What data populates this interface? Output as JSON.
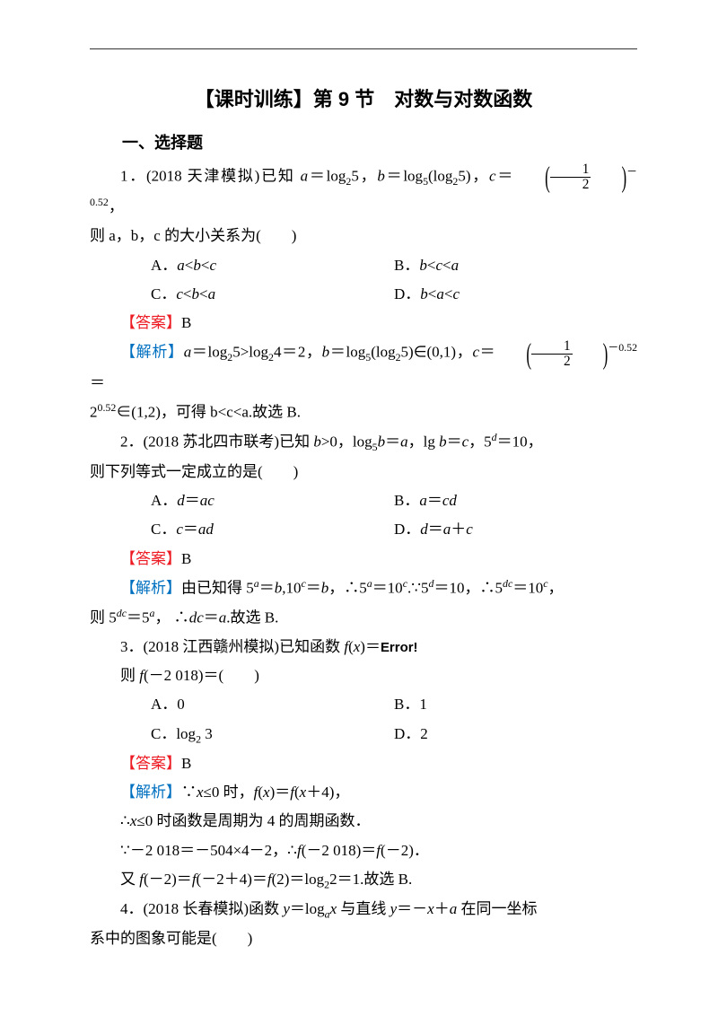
{
  "title": "【课时训练】第 9 节　对数与对数函数",
  "section_heading": "一、选择题",
  "q1": {
    "stem_a": "1．(2018 天津模拟)已知 ",
    "stem_mid": "，",
    "stem_c": "，",
    "stem_end": "，",
    "line2": "则 a，b，c 的大小关系为(　　)",
    "A": "A．a<b<c",
    "B": "B．b<c<a",
    "C": "C．c<b<a",
    "D": "D．b<a<c",
    "ans_label": "【答案】",
    "ans": "B",
    "exp_label": "【解析】",
    "exp_a": "a＝log",
    "exp_b": "5>log",
    "exp_c": "4＝2，b＝log",
    "exp_d": "(log",
    "exp_e": "5)∈(0,1)，c＝",
    "exp_f": "＝",
    "exp2": "∈(1,2)，可得 b<c<a.故选 B."
  },
  "q2": {
    "stem": "2．(2018 苏北四市联考)已知 b>0，log₅b＝a，lg b＝c，5ᵈ＝10，",
    "line2": "则下列等式一定成立的是(　　)",
    "A": "A．d＝ac",
    "B": "B．a＝cd",
    "C": "C．c＝ad",
    "D": "D．d＝a＋c",
    "ans_label": "【答案】",
    "ans": "B",
    "exp_label": "【解析】",
    "exp1": "由已知得 5ᵃ＝b,10ᶜ＝b，∴5ᵃ＝10ᶜ.∵5ᵈ＝10，∴5ᵈᶜ＝10ᶜ，",
    "exp2": "则 5ᵈᶜ＝5ᵃ， ∴dc＝a.故选 B."
  },
  "q3": {
    "stem": "3．(2018 江西赣州模拟)已知函数 f(x)＝",
    "err": "Error!",
    "line2": "则 f(－2 018)＝(　　)",
    "A": "A．0",
    "B": "B．1",
    "C": "C．log₂ 3",
    "D": "D．2",
    "ans_label": "【答案】",
    "ans": "B",
    "exp_label": "【解析】",
    "exp1": "∵x≤0 时，f(x)＝f(x＋4)，",
    "exp2": "∴x≤0 时函数是周期为 4 的周期函数．",
    "exp3": "∵－2 018＝－504×4－2，∴f(－2 018)＝f(－2)．",
    "exp4": "又 f(－2)＝f(－2＋4)＝f(2)＝log₂2＝1.故选 B."
  },
  "q4": {
    "stem": "4．(2018 长春模拟)函数 y＝logₐx 与直线 y＝－x＋a 在同一坐标",
    "line2": "系中的图象可能是(　　)"
  },
  "colors": {
    "answer": "#ed1c24",
    "explain": "#0070c0",
    "text": "#000000",
    "bg": "#ffffff"
  },
  "fontsize": {
    "body": 17,
    "title": 22,
    "section": 18
  }
}
